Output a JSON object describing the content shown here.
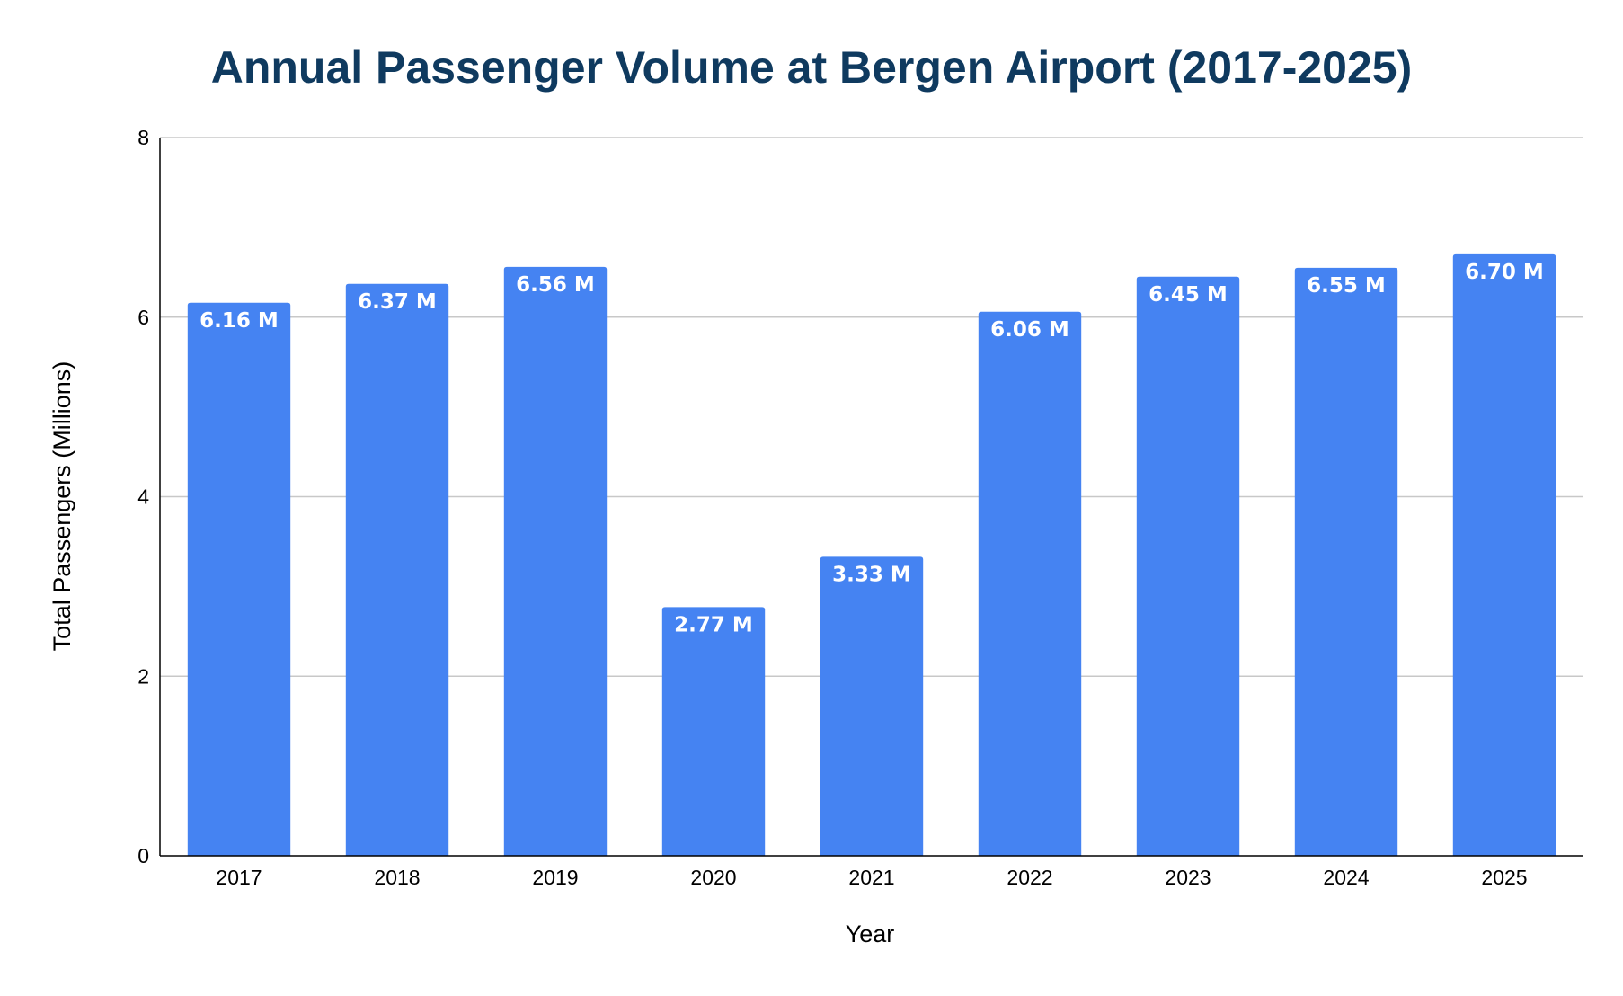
{
  "chart_data": {
    "type": "bar",
    "title": "Annual Passenger Volume at Bergen Airport (2017-2025)",
    "xlabel": "Year",
    "ylabel": "Total Passengers (Millions)",
    "categories": [
      "2017",
      "2018",
      "2019",
      "2020",
      "2021",
      "2022",
      "2023",
      "2024",
      "2025"
    ],
    "values": [
      6.16,
      6.37,
      6.56,
      2.77,
      3.33,
      6.06,
      6.45,
      6.55,
      6.7
    ],
    "data_labels": [
      "6.16 M",
      "6.37 M",
      "6.56 M",
      "2.77 M",
      "3.33 M",
      "6.06 M",
      "6.45 M",
      "6.55 M",
      "6.70 M"
    ],
    "ylim": [
      0,
      8
    ],
    "yticks": [
      0,
      2,
      4,
      6,
      8
    ],
    "grid": true,
    "legend": "none"
  },
  "colors": {
    "bar": "#4583F2",
    "title": "#0F3A5F",
    "grid": "#C8C8C8",
    "axis": "#000000",
    "data_label": "#FFFFFF"
  }
}
